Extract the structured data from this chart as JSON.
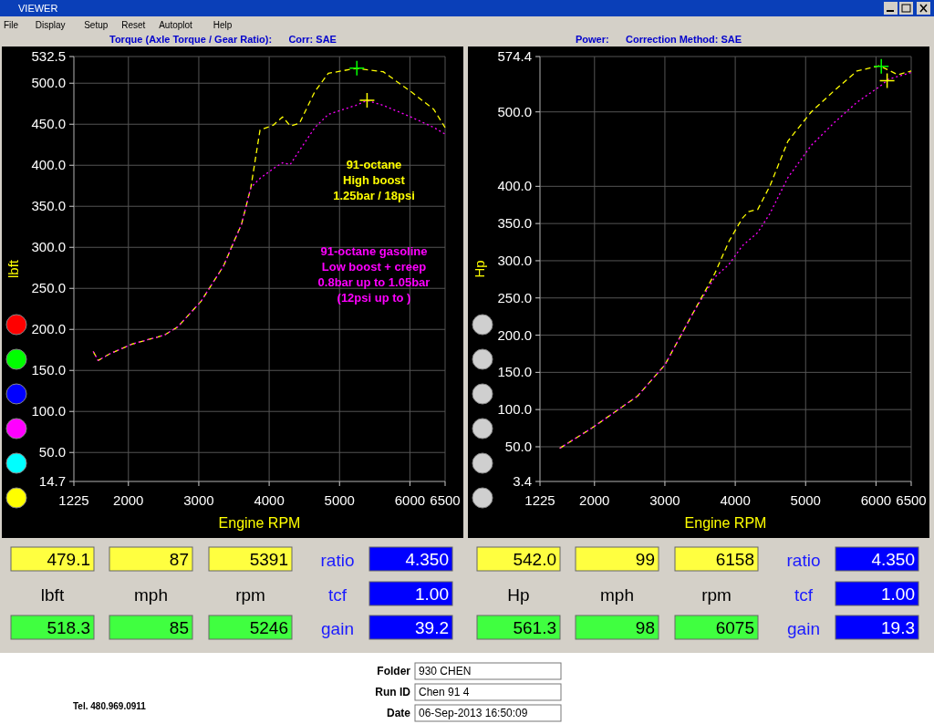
{
  "chart_data": [
    {
      "type": "other",
      "annotations": [
        "VIEWER",
        "File",
        "Display",
        "Setup",
        "Reset",
        "Autoplot",
        "Help"
      ]
    },
    {
      "type": "line",
      "title": "Torque (Axle Torque / Gear Ratio):      Corr: SAE",
      "xlabel": "Engine RPM",
      "ylabel": "lbft",
      "xlim": [
        1225,
        6500
      ],
      "xticks": [
        1225,
        2000,
        3000,
        4000,
        5000,
        6000,
        6500
      ],
      "ylim": [
        14.7,
        532.5
      ],
      "yticks": [
        {
          "value": 14.7,
          "label": "14.7"
        },
        {
          "value": 50,
          "label": "50.0"
        },
        {
          "value": 100,
          "label": "100.0"
        },
        {
          "value": 150,
          "label": "150.0"
        },
        {
          "value": 200,
          "label": "200.0"
        },
        {
          "value": 250,
          "label": "250.0"
        },
        {
          "value": 300,
          "label": "300.0"
        },
        {
          "value": 350,
          "label": "350.0"
        },
        {
          "value": 400,
          "label": "400.0"
        },
        {
          "value": 450,
          "label": "450.0"
        },
        {
          "value": 500,
          "label": "500.0"
        },
        {
          "value": 532.5,
          "label": "532.5"
        }
      ],
      "grid": true,
      "series": [
        {
          "name": "91-octane\nHigh boost\n1.25bar / 18psi",
          "color": "#ffff00",
          "line_style": "dashed",
          "x": [
            1500,
            1570,
            1730,
            2050,
            2510,
            2700,
            3030,
            3350,
            3610,
            3740,
            3870,
            4060,
            4190,
            4300,
            4430,
            4650,
            4840,
            5230,
            5620,
            6010,
            6340,
            6500
          ],
          "values": [
            173,
            162,
            170,
            182,
            193,
            203,
            234,
            277,
            329,
            373,
            443,
            449,
            459,
            448,
            451,
            490,
            512,
            518,
            514,
            490,
            468,
            446
          ]
        },
        {
          "name": "91-octane gasoline\nLow boost + creep\n0.8bar up to 1.05bar\n(12psi up to )",
          "color": "#ff00ff",
          "line_style": "dotted",
          "x": [
            1500,
            1570,
            1730,
            2050,
            2510,
            2700,
            3030,
            3350,
            3610,
            3740,
            3870,
            4060,
            4190,
            4300,
            4430,
            4650,
            4840,
            5230,
            5391,
            5620,
            6010,
            6340,
            6500
          ],
          "values": [
            173,
            162,
            170,
            182,
            193,
            203,
            234,
            277,
            329,
            373,
            384,
            396,
            403,
            401,
            418,
            446,
            462,
            473,
            479,
            473,
            459,
            446,
            438
          ]
        },
        {
          "type": "scatter",
          "marker": "cross",
          "color": "#00ff00",
          "x": [
            5246
          ],
          "values": [
            518.3
          ]
        },
        {
          "type": "scatter",
          "marker": "cross",
          "color": "#ffff00",
          "x": [
            5391
          ],
          "values": [
            479.1
          ]
        }
      ]
    },
    {
      "type": "line",
      "title": "Power:      Correction Method: SAE",
      "xlabel": "Engine RPM",
      "ylabel": "Hp",
      "xlim": [
        1225,
        6500
      ],
      "xticks": [
        1225,
        2000,
        3000,
        4000,
        5000,
        6000,
        6500
      ],
      "ylim": [
        3.4,
        574.4
      ],
      "yticks": [
        {
          "value": 3.4,
          "label": "3.4"
        },
        {
          "value": 50,
          "label": "50.0"
        },
        {
          "value": 100,
          "label": "100.0"
        },
        {
          "value": 150,
          "label": "150.0"
        },
        {
          "value": 200,
          "label": "200.0"
        },
        {
          "value": 250,
          "label": "250.0"
        },
        {
          "value": 300,
          "label": "300.0"
        },
        {
          "value": 350,
          "label": "350.0"
        },
        {
          "value": 400,
          "label": "400.0"
        },
        {
          "value": 500,
          "label": "500.0"
        },
        {
          "value": 574.4,
          "label": "574.4"
        }
      ],
      "grid": true,
      "series": [
        {
          "color": "#ffff00",
          "line_style": "dashed",
          "x": [
            1506,
            1960,
            2610,
            3000,
            3390,
            3710,
            3910,
            4100,
            4190,
            4320,
            4490,
            4750,
            5080,
            5400,
            5730,
            6050,
            6310,
            6500
          ],
          "values": [
            48,
            75,
            118,
            160,
            228,
            283,
            326,
            357,
            366,
            369,
            400,
            461,
            500,
            528,
            555,
            562,
            550,
            555
          ]
        },
        {
          "color": "#ff00ff",
          "line_style": "dotted",
          "x": [
            1506,
            1960,
            2610,
            3000,
            3390,
            3710,
            3910,
            4100,
            4320,
            4490,
            4750,
            5080,
            5400,
            5730,
            6050,
            6180,
            6500
          ],
          "values": [
            48,
            75,
            118,
            160,
            228,
            278,
            295,
            320,
            338,
            363,
            412,
            455,
            485,
            513,
            534,
            544,
            553
          ]
        },
        {
          "type": "scatter",
          "marker": "cross",
          "color": "#00ff00",
          "x": [
            6075
          ],
          "values": [
            561.3
          ]
        },
        {
          "type": "scatter",
          "marker": "cross",
          "color": "#ffff00",
          "x": [
            6158
          ],
          "values": [
            542.0
          ]
        }
      ]
    },
    {
      "type": "other",
      "annotations": [
        "479.1",
        "87",
        "5391",
        "ratio",
        "4.350",
        "lbft",
        "mph",
        "rpm",
        "tcf",
        "1.00",
        "518.3",
        "85",
        "5246",
        "gain",
        "39.2"
      ]
    },
    {
      "type": "other",
      "annotations": [
        "542.0",
        "99",
        "6158",
        "ratio",
        "4.350",
        "Hp",
        "mph",
        "rpm",
        "tcf",
        "1.00",
        "561.3",
        "98",
        "6075",
        "gain",
        "19.3"
      ]
    },
    {
      "type": "other",
      "annotations": [
        "Tel. 480.969.0911",
        "Folder",
        "930 CHEN",
        "Run ID",
        "Chen 91 4",
        "Date",
        "06-Sep-2013 16:50:09"
      ]
    }
  ]
}
